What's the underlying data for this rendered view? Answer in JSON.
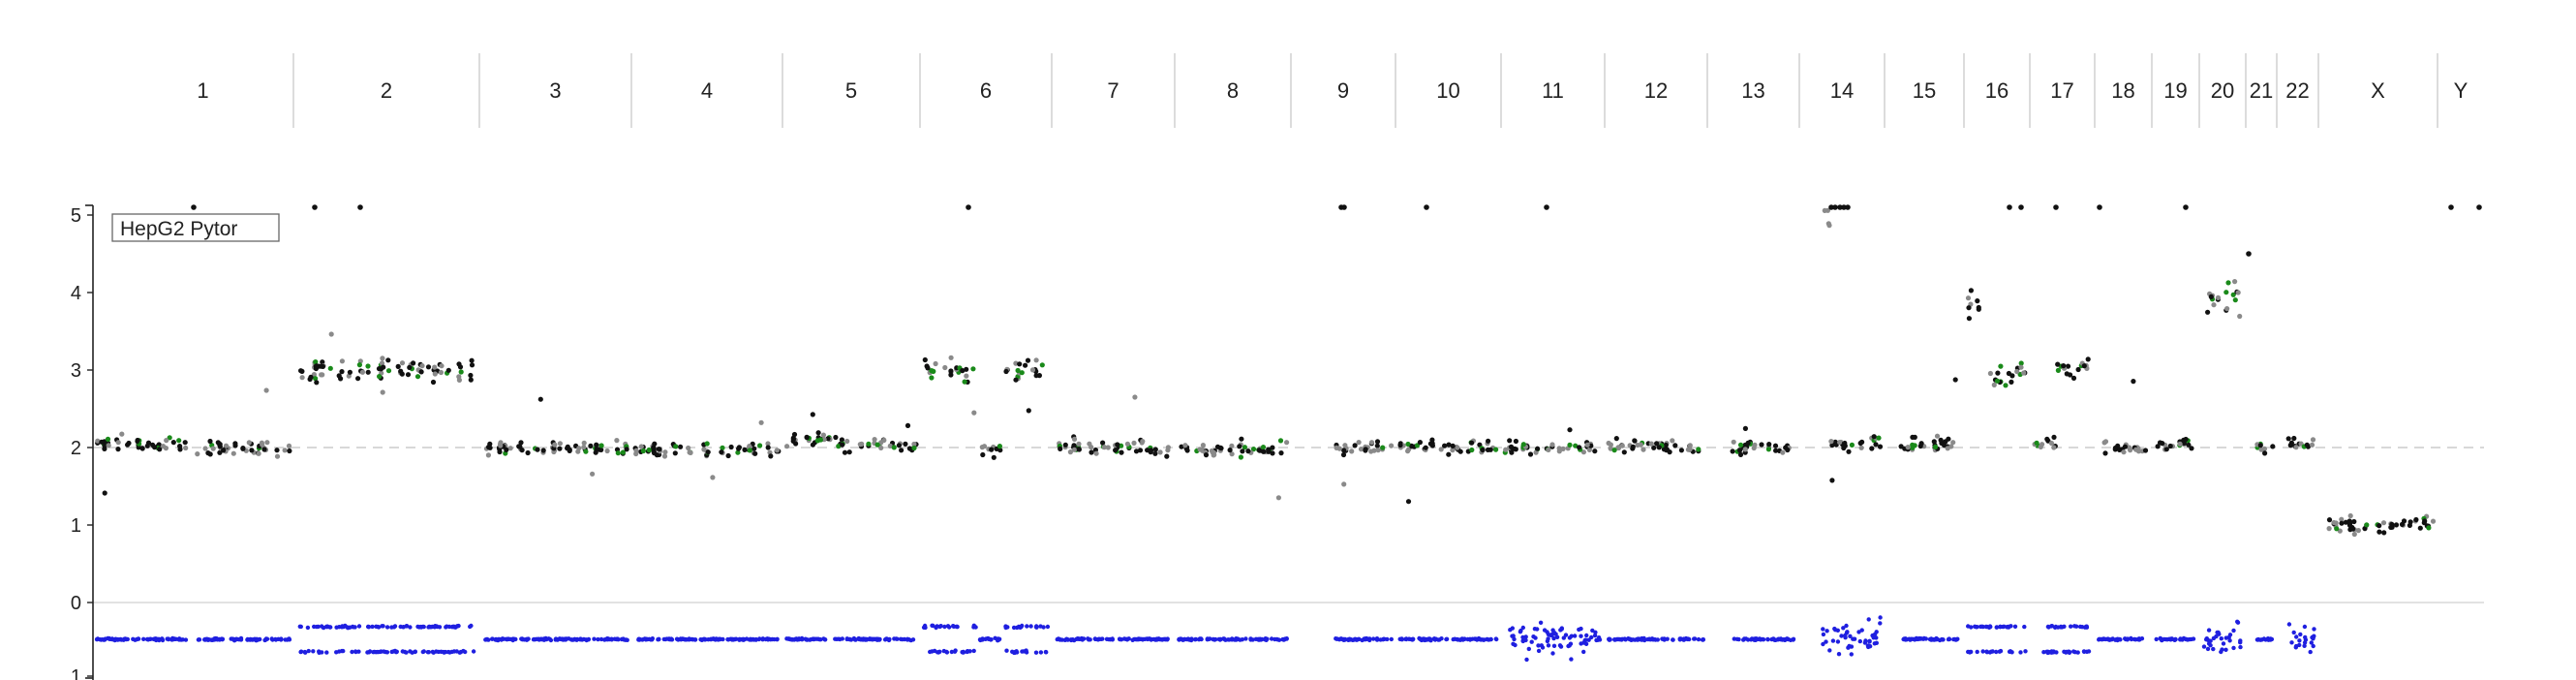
{
  "chart_data": {
    "type": "scatter",
    "title": "",
    "xlabel": "",
    "ylabel": "",
    "legend": {
      "label": "HepG2 Pytor",
      "placement": "top-left"
    },
    "grid": false,
    "ylim": [
      0,
      5
    ],
    "ylim_lower_track": [
      0,
      1
    ],
    "y_ticks": [
      0,
      1,
      2,
      3,
      4,
      5
    ],
    "y_ticks_lower_track": [
      0,
      1
    ],
    "reference_line": 2,
    "chromosomes": [
      "1",
      "2",
      "3",
      "4",
      "5",
      "6",
      "7",
      "8",
      "9",
      "10",
      "11",
      "12",
      "13",
      "14",
      "15",
      "16",
      "17",
      "18",
      "19",
      "20",
      "21",
      "22",
      "X",
      "Y"
    ],
    "colors": {
      "copy_number_dark": "#111111",
      "copy_number_light": "#8a8a8a",
      "segment_fit": "#1a8a1a",
      "baf": "#1f1fe0",
      "reference_line": "#cccccc",
      "divider": "#cccccc"
    },
    "copy_number_segments": [
      {
        "chrom": "1",
        "segments": [
          [
            0,
            0.48,
            2.05
          ],
          [
            0.52,
            1,
            2.0
          ]
        ]
      },
      {
        "chrom": "2",
        "segments": [
          [
            0,
            1,
            3.0
          ]
        ]
      },
      {
        "chrom": "3",
        "segments": [
          [
            0,
            1,
            2.0
          ]
        ]
      },
      {
        "chrom": "4",
        "segments": [
          [
            0,
            1,
            1.97
          ]
        ]
      },
      {
        "chrom": "5",
        "segments": [
          [
            0,
            0.4,
            2.1
          ],
          [
            0.4,
            1,
            2.03
          ]
        ]
      },
      {
        "chrom": "6",
        "segments": [
          [
            0,
            0.42,
            3.0
          ],
          [
            0.45,
            0.62,
            2.0
          ],
          [
            0.65,
            1,
            3.0
          ]
        ]
      },
      {
        "chrom": "7",
        "segments": [
          [
            0,
            1,
            2.0
          ]
        ]
      },
      {
        "chrom": "8",
        "segments": [
          [
            0,
            1,
            1.97
          ]
        ]
      },
      {
        "chrom": "9",
        "segments": [
          [
            0.4,
            1,
            2.0
          ]
        ]
      },
      {
        "chrom": "10",
        "segments": [
          [
            0,
            1,
            2.0
          ]
        ]
      },
      {
        "chrom": "11",
        "segments": [
          [
            0,
            1,
            2.0
          ]
        ]
      },
      {
        "chrom": "12",
        "segments": [
          [
            0,
            1,
            2.02
          ]
        ]
      },
      {
        "chrom": "13",
        "segments": [
          [
            0.25,
            1,
            2.0
          ]
        ]
      },
      {
        "chrom": "14",
        "segments": [
          [
            0.25,
            0.35,
            5.0
          ],
          [
            0.35,
            1,
            2.05
          ]
        ]
      },
      {
        "chrom": "15",
        "segments": [
          [
            0.15,
            1,
            2.03
          ]
        ]
      },
      {
        "chrom": "16",
        "segments": [
          [
            0,
            0.3,
            3.9
          ],
          [
            0.3,
            1,
            2.95
          ]
        ]
      },
      {
        "chrom": "17",
        "segments": [
          [
            0,
            0.4,
            2.05
          ],
          [
            0.4,
            1,
            3.05
          ]
        ]
      },
      {
        "chrom": "18",
        "segments": [
          [
            0,
            1,
            2.0
          ]
        ]
      },
      {
        "chrom": "19",
        "segments": [
          [
            0,
            1,
            2.05
          ]
        ]
      },
      {
        "chrom": "20",
        "segments": [
          [
            0,
            1,
            3.9
          ]
        ]
      },
      {
        "chrom": "21",
        "segments": [
          [
            0.3,
            1,
            2.0
          ]
        ]
      },
      {
        "chrom": "22",
        "segments": [
          [
            0.2,
            1,
            2.05
          ]
        ]
      },
      {
        "chrom": "X",
        "segments": [
          [
            0,
            1,
            1.0
          ]
        ]
      },
      {
        "chrom": "Y",
        "segments": []
      }
    ],
    "baf_pattern": {
      "1": "single",
      "2": "split",
      "3": "single",
      "4": "single",
      "5": "single",
      "6": "mixed",
      "7": "single",
      "8": "single",
      "9": "single",
      "10": "single",
      "11": "scattered",
      "12": "single",
      "13": "single",
      "14": "scattered",
      "15": "single",
      "16": "split",
      "17": "split",
      "18": "single",
      "19": "single",
      "20": "scattered",
      "21": "single",
      "22": "scattered",
      "X": "none",
      "Y": "none"
    }
  }
}
